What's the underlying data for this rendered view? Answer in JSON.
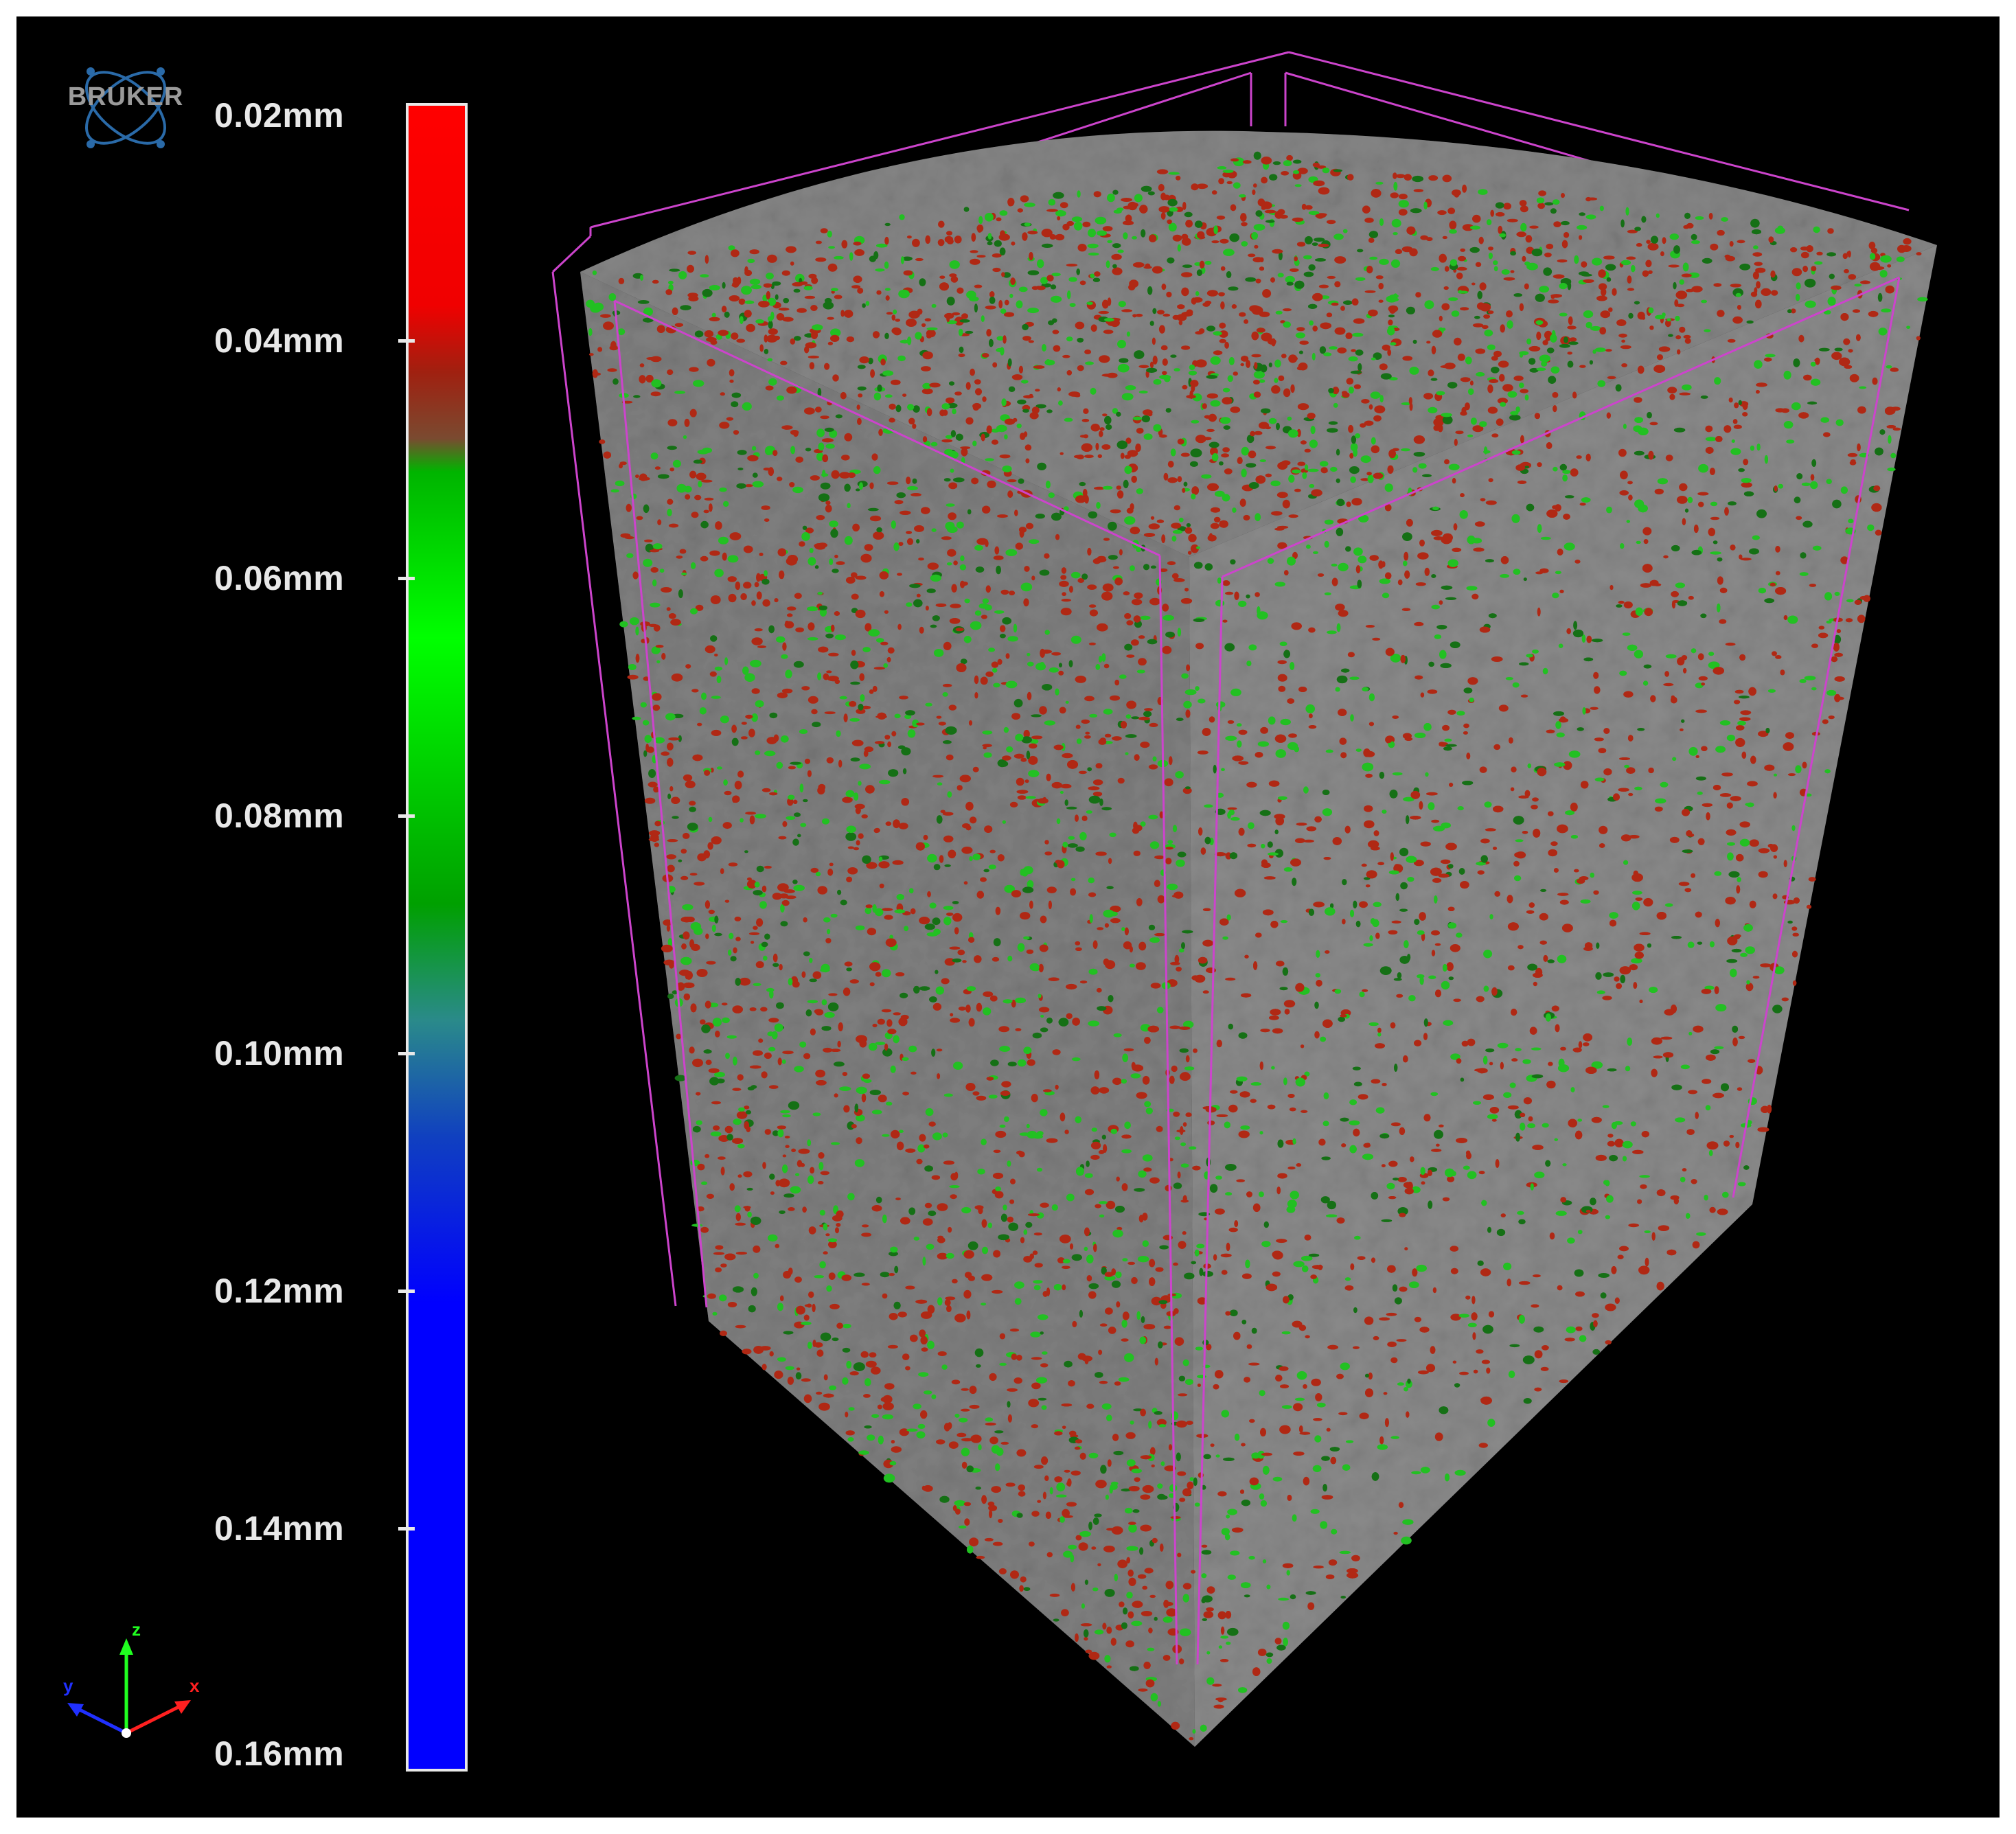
{
  "logo": {
    "text": "BRUKER",
    "icon": "atom-icon"
  },
  "colorbar": {
    "unit": "mm",
    "labels": [
      "0.02mm",
      "0.04mm",
      "0.06mm",
      "0.08mm",
      "0.10mm",
      "0.12mm",
      "0.14mm",
      "0.16mm"
    ],
    "gradient_colors": [
      "#ff0000",
      "#f00000",
      "#a02010",
      "#7a4a30",
      "#00b400",
      "#00ff00",
      "#00a000",
      "#2a8a8a",
      "#1040c0",
      "#0000ff",
      "#0000ff"
    ]
  },
  "axes": {
    "x": "x",
    "y": "y",
    "z": "z",
    "x_color": "#ff2020",
    "y_color": "#2030ff",
    "z_color": "#20ff20"
  },
  "volume": {
    "face_color": "#888888",
    "bbox_color": "#cc44cc",
    "pore_colors": [
      "#b02814",
      "#22c022",
      "#157015"
    ]
  }
}
